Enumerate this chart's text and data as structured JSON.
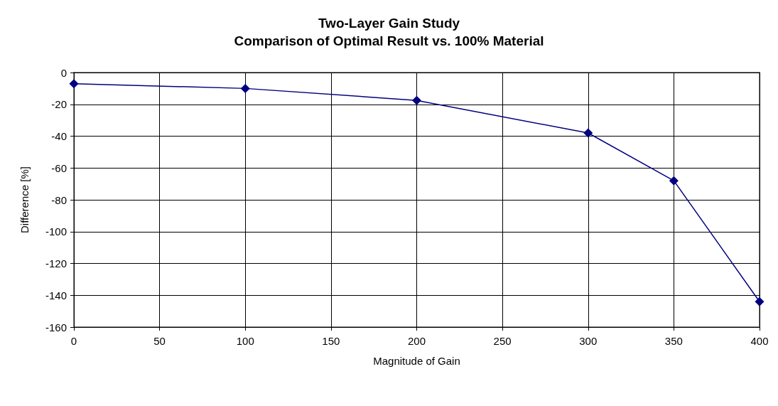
{
  "chart_data": {
    "type": "line",
    "title": "Two-Layer Gain Study",
    "subtitle": "Comparison of Optimal Result vs. 100% Material",
    "xlabel": "Magnitude of Gain",
    "ylabel": "Difference [%]",
    "x": [
      0,
      100,
      200,
      300,
      350,
      400
    ],
    "series": [
      {
        "color": "#000080",
        "values": [
          -7,
          -10,
          -17.5,
          -38,
          -68,
          -144
        ]
      }
    ],
    "xlim": [
      0,
      400
    ],
    "xticks": [
      0,
      50,
      100,
      150,
      200,
      250,
      300,
      350,
      400
    ],
    "ylim": [
      -160,
      0
    ],
    "yticks": [
      -160,
      -140,
      -120,
      -100,
      -80,
      -60,
      -40,
      -20,
      0
    ],
    "grid": true,
    "marker": "diamond",
    "line_style": "solid"
  }
}
